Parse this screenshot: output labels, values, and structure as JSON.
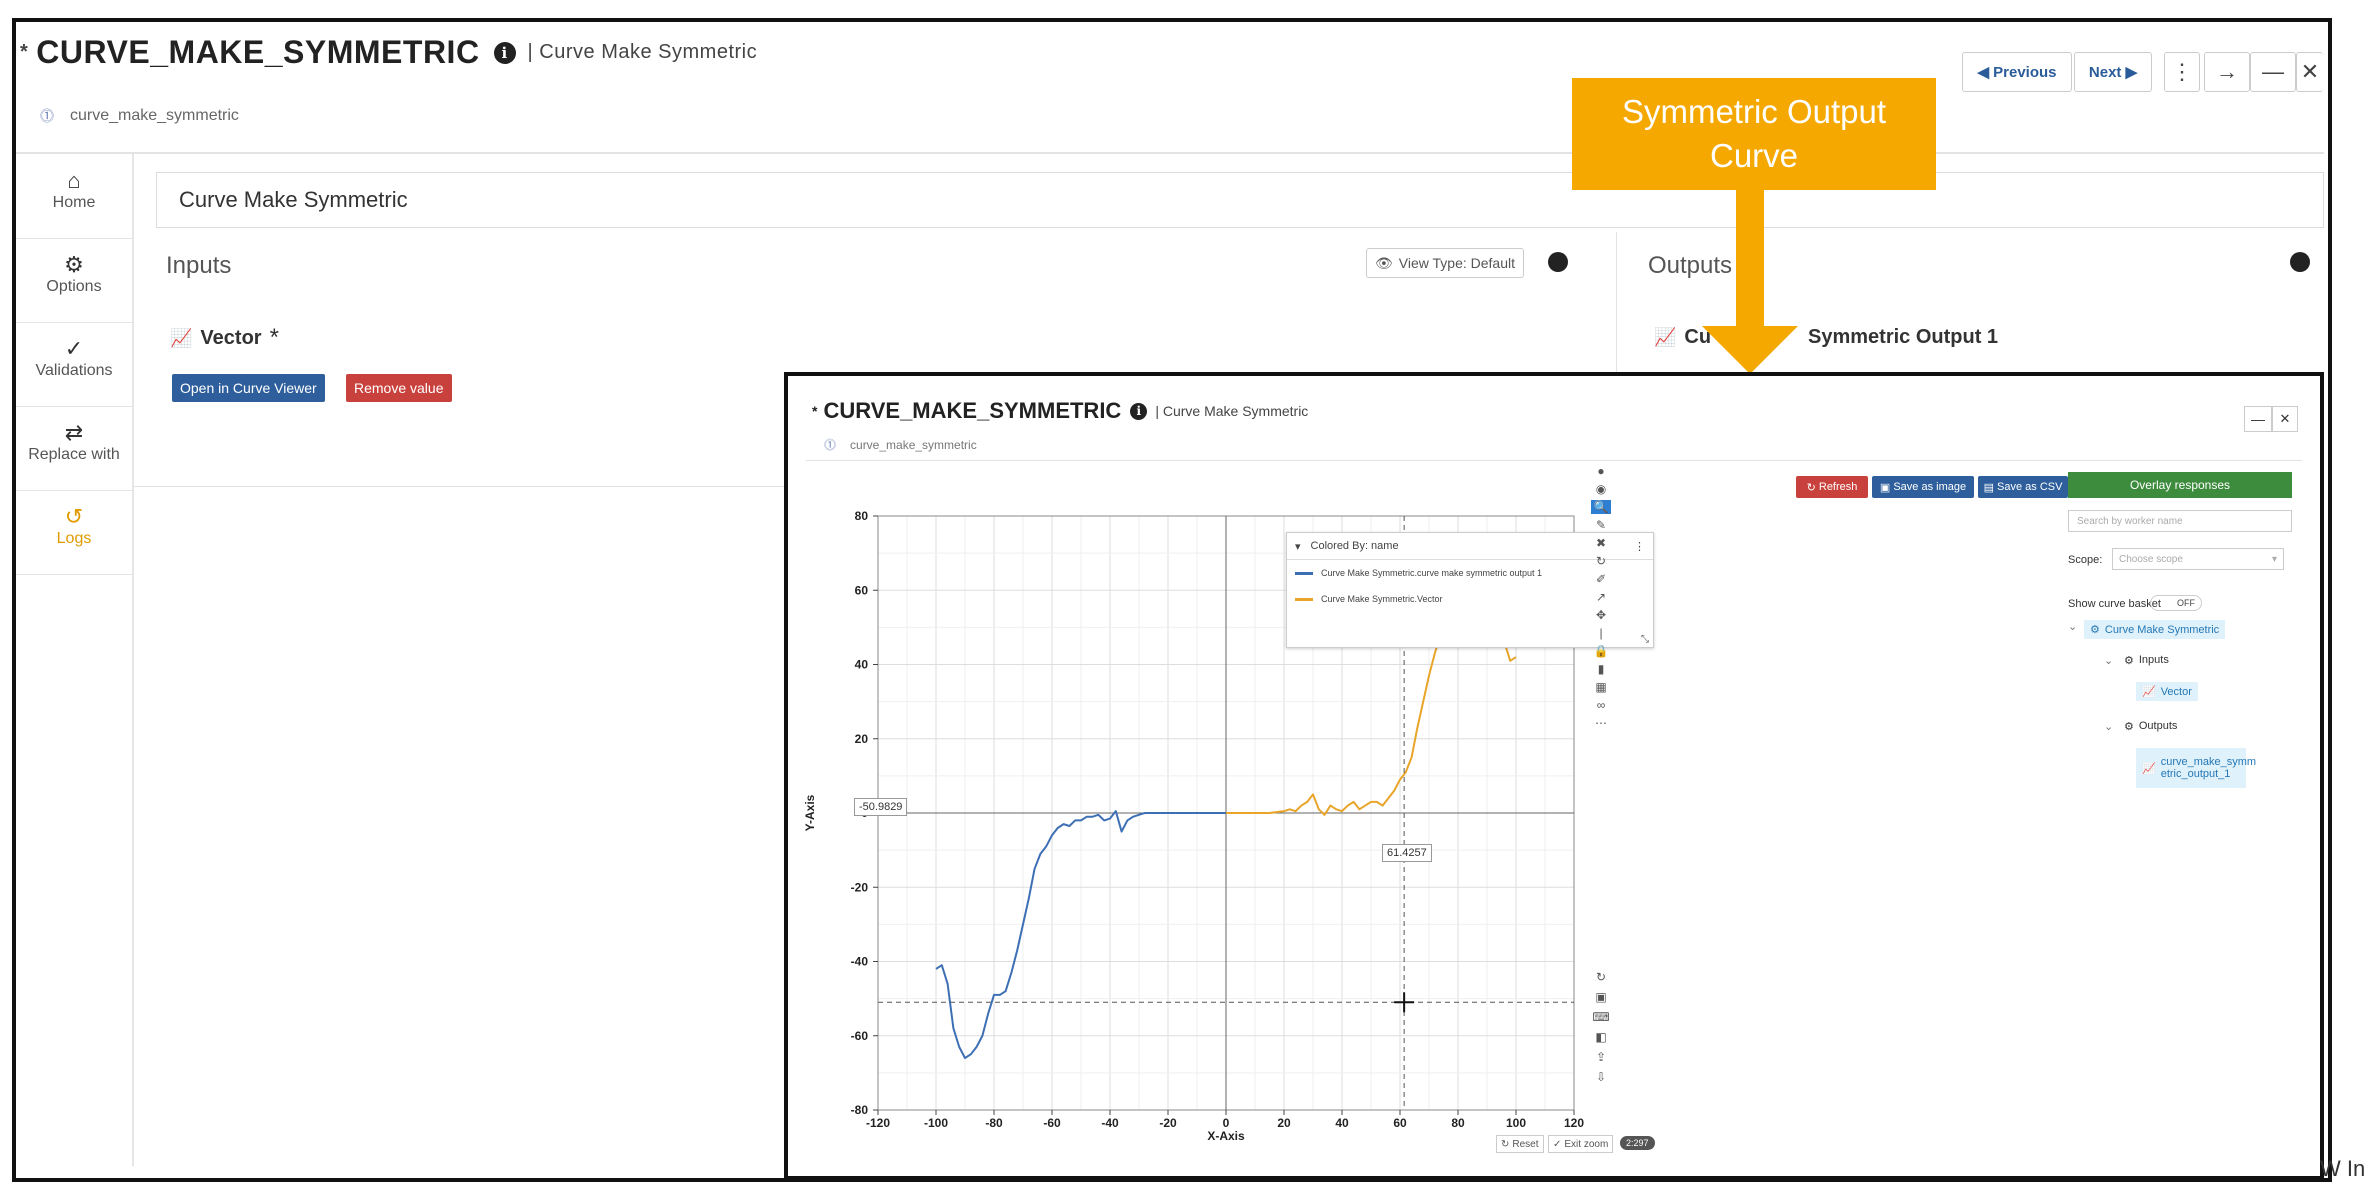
{
  "outer": {
    "title": "CURVE_MAKE_SYMMETRIC",
    "subtitle": "| Curve Make Symmetric",
    "id_text": "curve_make_symmetric",
    "nav": {
      "previous": "◀ Previous",
      "next": "Next ▶"
    },
    "sidebar": [
      {
        "label": "Home",
        "icon": "home-icon"
      },
      {
        "label": "Options",
        "icon": "gear-icon"
      },
      {
        "label": "Validations",
        "icon": "double-check-icon"
      },
      {
        "label": "Replace with",
        "icon": "swap-arrows-icon"
      },
      {
        "label": "Logs",
        "icon": "history-icon"
      }
    ],
    "input_value": "Curve Make Symmetric",
    "inputs_title": "Inputs",
    "view_type": "View Type: Default",
    "vector_label": "Vector",
    "required_mark": "*",
    "open_viewer": "Open in Curve Viewer",
    "remove_value": "Remove value",
    "outputs_title": "Outputs",
    "output_label": "Symmetric Output 1",
    "output_label_partial": "Cu"
  },
  "callout": {
    "text": "Symmetric Output Curve",
    "color": "#f5a800"
  },
  "inner": {
    "title": "CURVE_MAKE_SYMMETRIC",
    "subtitle": "| Curve Make Symmetric",
    "id_text": "curve_make_symmetric",
    "toolbar": {
      "refresh": "Refresh",
      "save_image": "Save as image",
      "save_csv": "Save as CSV"
    },
    "legend_header": "Colored By: name",
    "bottom": {
      "reset": "Reset",
      "exit_zoom": "Exit zoom",
      "badge": "2:297"
    },
    "crosshair": {
      "x_readout": "61.4257",
      "y_readout": "-50.9829"
    },
    "right_panel": {
      "overlay": "Overlay responses",
      "search_placeholder": "Search by worker name",
      "scope_label": "Scope:",
      "scope_placeholder": "Choose scope",
      "basket_label": "Show curve basket",
      "basket_state": "OFF",
      "tree": {
        "root": "Curve Make Symmetric",
        "inputs": "Inputs",
        "vector": "Vector",
        "outputs": "Outputs",
        "output_line1": "curve_make_symm",
        "output_line2": "etric_output_1"
      }
    }
  },
  "footer_text": "W In",
  "chart_data": {
    "type": "line",
    "xlabel": "X-Axis",
    "ylabel": "Y-Axis",
    "xlim": [
      -120,
      120
    ],
    "ylim": [
      -80,
      80
    ],
    "xticks": [
      -120,
      -100,
      -80,
      -60,
      -40,
      -20,
      0,
      20,
      40,
      60,
      80,
      100,
      120
    ],
    "yticks": [
      -80,
      -60,
      -40,
      -20,
      0,
      20,
      40,
      60,
      80
    ],
    "grid": true,
    "legend_placement": "top-right",
    "series": [
      {
        "name": "Curve Make Symmetric.curve make symmetric output 1",
        "color": "#3d6fb4",
        "x": [
          -100,
          -98,
          -96,
          -94,
          -92,
          -90,
          -88,
          -86,
          -84,
          -82,
          -80,
          -78,
          -76,
          -74,
          -72,
          -70,
          -68,
          -66,
          -64,
          -62,
          -60,
          -58,
          -56,
          -54,
          -52,
          -50,
          -48,
          -46,
          -44,
          -42,
          -40,
          -38,
          -36,
          -34,
          -32,
          -30,
          -28,
          -26,
          -24,
          -22,
          -20,
          -15,
          -10,
          -5,
          0
        ],
        "y": [
          -42,
          -41,
          -46,
          -58,
          -63,
          -66,
          -65,
          -63,
          -60,
          -54,
          -49,
          -49,
          -48,
          -43,
          -37,
          -30,
          -23,
          -15,
          -11,
          -9,
          -6,
          -4,
          -3,
          -3.5,
          -2,
          -2,
          -1,
          -1,
          -0.5,
          -2,
          -1.5,
          0.5,
          -5,
          -2,
          -1,
          -0.5,
          0,
          0,
          0,
          0,
          0,
          0,
          0,
          0,
          0
        ]
      },
      {
        "name": "Curve Make Symmetric.Vector",
        "color": "#e8a52a",
        "x": [
          0,
          5,
          10,
          15,
          20,
          22,
          24,
          26,
          28,
          30,
          32,
          34,
          36,
          38,
          40,
          42,
          44,
          46,
          48,
          50,
          52,
          54,
          56,
          58,
          60,
          62,
          64,
          66,
          68,
          70,
          72,
          74,
          76,
          78,
          80,
          82,
          84,
          86,
          88,
          90,
          92,
          94,
          96,
          98,
          100
        ],
        "y": [
          0,
          0,
          0,
          0,
          0.5,
          1,
          0.5,
          2,
          3,
          5,
          1,
          -0.5,
          2,
          1,
          0.5,
          2,
          3,
          1,
          2,
          3,
          3,
          2,
          4,
          6,
          9,
          11,
          15,
          23,
          30,
          37,
          43,
          48,
          49,
          46,
          48,
          49,
          54,
          58,
          63,
          66,
          65,
          63,
          46,
          41,
          42
        ]
      }
    ]
  }
}
